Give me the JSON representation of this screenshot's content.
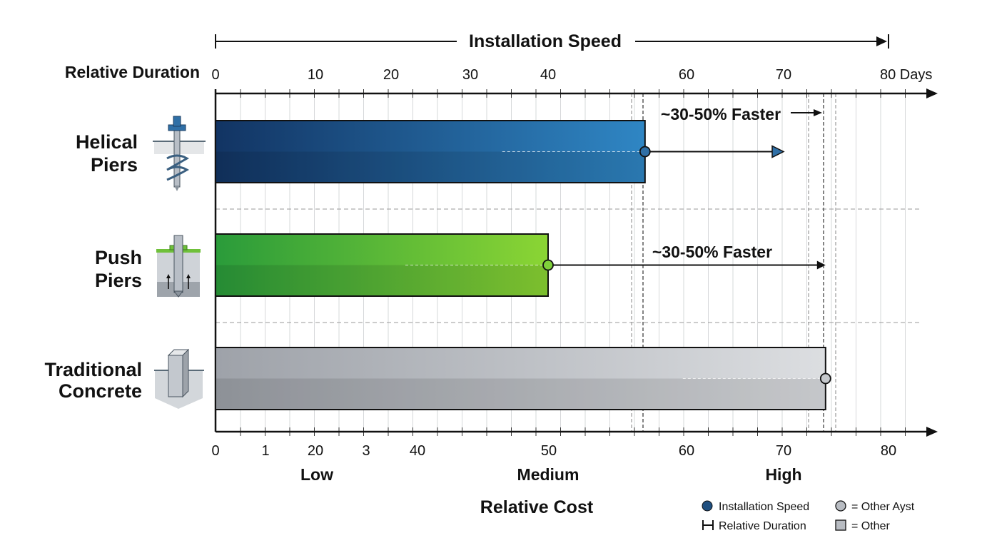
{
  "chart_data": {
    "type": "bar",
    "orientation": "horizontal",
    "title": "Installation Speed",
    "top_axis": {
      "label": "Relative Duration",
      "unit": "Days",
      "tick_labels": [
        "0",
        "10",
        "20",
        "30",
        "40",
        "60",
        "70",
        "80 Days"
      ],
      "range": [
        0,
        80
      ]
    },
    "bottom_axis": {
      "label": "Relative Cost",
      "tick_labels": [
        "0",
        "1",
        "20",
        "3",
        "40",
        "50",
        "60",
        "70",
        "80"
      ],
      "category_labels": [
        "Low",
        "Medium",
        "High"
      ]
    },
    "categories": [
      "Helical Piers",
      "Push Piers",
      "Traditional Concrete"
    ],
    "category_lines": [
      [
        "Helical",
        "Piers"
      ],
      [
        "Push",
        "Piers"
      ],
      [
        "Traditional",
        "Concrete"
      ]
    ],
    "values": [
      54,
      40,
      74
    ],
    "colors": [
      "#1f5a93",
      "#4cb83a",
      "#b4b8be"
    ],
    "annotations": [
      {
        "category": "Helical Piers",
        "text": "~30-50% Faster",
        "from": 54,
        "to": 70
      },
      {
        "category": "Push Piers",
        "text": "~30-50% Faster",
        "from": 40,
        "to": 74
      }
    ],
    "grid": true,
    "legend": {
      "position": "bottom-right",
      "items": [
        {
          "marker": "circle",
          "color": "#1f4f7f",
          "label": "Installation Speed"
        },
        {
          "marker": "circle",
          "color": "#b8bcc2",
          "label": "= Other Ayst"
        },
        {
          "marker": "h-bracket",
          "color": "#111111",
          "label": "Relative Duration"
        },
        {
          "marker": "square",
          "color": "#b8bcc2",
          "label": "= Other"
        }
      ]
    }
  }
}
